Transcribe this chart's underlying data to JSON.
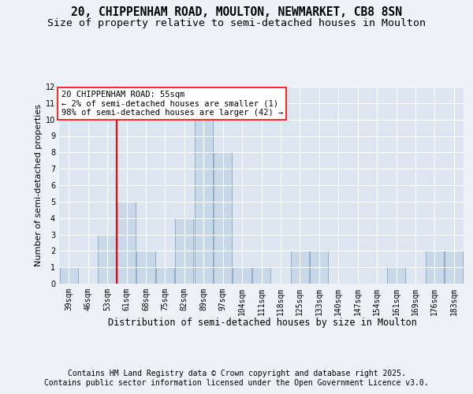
{
  "title1": "20, CHIPPENHAM ROAD, MOULTON, NEWMARKET, CB8 8SN",
  "title2": "Size of property relative to semi-detached houses in Moulton",
  "xlabel": "Distribution of semi-detached houses by size in Moulton",
  "ylabel": "Number of semi-detached properties",
  "categories": [
    "39sqm",
    "46sqm",
    "53sqm",
    "61sqm",
    "68sqm",
    "75sqm",
    "82sqm",
    "89sqm",
    "97sqm",
    "104sqm",
    "111sqm",
    "118sqm",
    "125sqm",
    "133sqm",
    "140sqm",
    "147sqm",
    "154sqm",
    "161sqm",
    "169sqm",
    "176sqm",
    "183sqm"
  ],
  "values": [
    1,
    0,
    3,
    5,
    2,
    1,
    4,
    10,
    8,
    1,
    1,
    0,
    2,
    2,
    0,
    0,
    0,
    1,
    0,
    2,
    2
  ],
  "bar_color": "#c8d8e8",
  "bar_edge_color": "#7799bb",
  "red_line_x": 2,
  "annotation_text": "20 CHIPPENHAM ROAD: 55sqm\n← 2% of semi-detached houses are smaller (1)\n98% of semi-detached houses are larger (42) →",
  "ylim": [
    0,
    12
  ],
  "yticks": [
    0,
    1,
    2,
    3,
    4,
    5,
    6,
    7,
    8,
    9,
    10,
    11,
    12
  ],
  "footer1": "Contains HM Land Registry data © Crown copyright and database right 2025.",
  "footer2": "Contains public sector information licensed under the Open Government Licence v3.0.",
  "background_color": "#eef2f7",
  "plot_bg_color": "#dde6f0",
  "grid_color": "#ffffff",
  "title_fontsize": 10.5,
  "subtitle_fontsize": 9.5,
  "annotation_fontsize": 7.5,
  "footer_fontsize": 7.0,
  "ylabel_fontsize": 8,
  "xlabel_fontsize": 8.5,
  "tick_fontsize": 7
}
